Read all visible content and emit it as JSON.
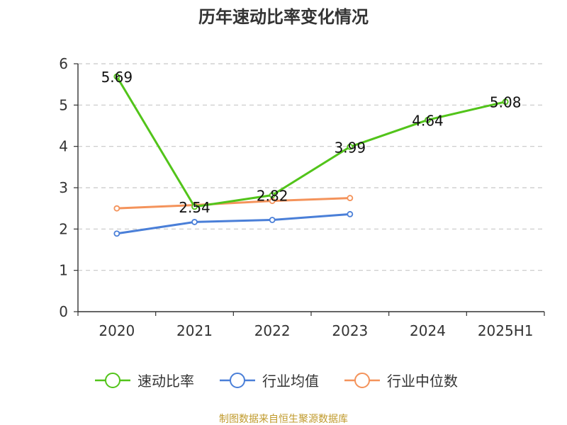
{
  "chart_data": {
    "type": "line",
    "title": "历年速动比率变化情况",
    "categories": [
      "2020",
      "2021",
      "2022",
      "2023",
      "2024",
      "2025H1"
    ],
    "ylim": [
      0,
      6
    ],
    "yticks": [
      0,
      1,
      2,
      3,
      4,
      5,
      6
    ],
    "grid": true,
    "legend_position": "bottom",
    "series": [
      {
        "name": "速动比率",
        "color": "#52c41a",
        "values": [
          5.69,
          2.54,
          2.82,
          3.99,
          4.64,
          5.08
        ],
        "show_labels": true
      },
      {
        "name": "行业均值",
        "color": "#4a7fd8",
        "values": [
          1.89,
          2.17,
          2.22,
          2.36,
          null,
          null
        ],
        "show_labels": false
      },
      {
        "name": "行业中位数",
        "color": "#f4935b",
        "values": [
          2.5,
          2.58,
          2.68,
          2.75,
          null,
          null
        ],
        "show_labels": false
      }
    ],
    "source": "制图数据来自恒生聚源数据库"
  }
}
